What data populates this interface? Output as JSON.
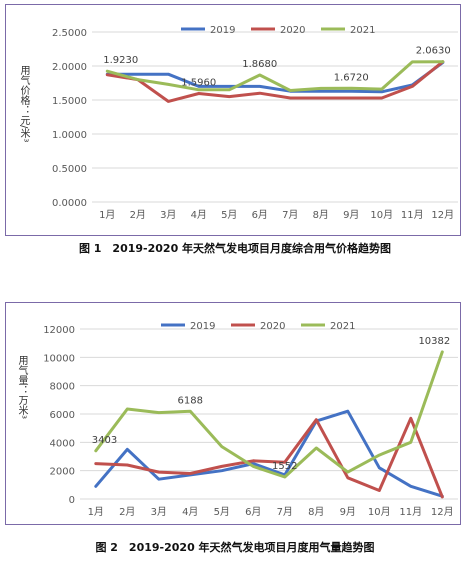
{
  "chart_data": [
    {
      "type": "line",
      "caption": "图 1　2019-2020 年天然气发电项目月度综合用气价格趋势图",
      "ylabel": "用气价格：元/米³",
      "categories": [
        "1月",
        "2月",
        "3月",
        "4月",
        "5月",
        "6月",
        "7月",
        "8月",
        "9月",
        "10月",
        "11月",
        "12月"
      ],
      "ylim": [
        0,
        2.5
      ],
      "yticks": [
        "0.0000",
        "0.5000",
        "1.0000",
        "1.5000",
        "2.0000",
        "2.5000"
      ],
      "legend_position": "top",
      "grid": true,
      "series": [
        {
          "name": "2019",
          "color": "#4472c4",
          "values": [
            1.88,
            1.88,
            1.88,
            1.7,
            1.7,
            1.7,
            1.63,
            1.63,
            1.63,
            1.62,
            1.72,
            2.05
          ]
        },
        {
          "name": "2020",
          "color": "#c0504d",
          "values": [
            1.87,
            1.8,
            1.48,
            1.596,
            1.55,
            1.6,
            1.53,
            1.53,
            1.53,
            1.53,
            1.7,
            2.063
          ]
        },
        {
          "name": "2021",
          "color": "#9bbb59",
          "values": [
            1.923,
            1.8,
            1.73,
            1.65,
            1.65,
            1.868,
            1.64,
            1.67,
            1.672,
            1.66,
            2.06,
            2.063
          ]
        }
      ],
      "annotations": [
        {
          "text": "1.9230",
          "series": 2,
          "index": 0
        },
        {
          "text": "1.5960",
          "series": 1,
          "index": 3
        },
        {
          "text": "1.8680",
          "series": 2,
          "index": 5
        },
        {
          "text": "1.6720",
          "series": 2,
          "index": 8
        },
        {
          "text": "2.0630",
          "series": 2,
          "index": 11
        }
      ]
    },
    {
      "type": "line",
      "caption": "图 2　2019-2020 年天然气发电项目月度用气量趋势图",
      "ylabel": "用气量：万米³",
      "categories": [
        "1月",
        "2月",
        "3月",
        "4月",
        "5月",
        "6月",
        "7月",
        "8月",
        "9月",
        "10月",
        "11月",
        "12月"
      ],
      "ylim": [
        0,
        12000
      ],
      "yticks": [
        "0",
        "2000",
        "4000",
        "6000",
        "8000",
        "10000",
        "12000"
      ],
      "legend_position": "top",
      "grid": true,
      "series": [
        {
          "name": "2019",
          "color": "#4472c4",
          "values": [
            900,
            3500,
            1400,
            1700,
            2000,
            2500,
            1700,
            5500,
            6200,
            2200,
            900,
            200
          ]
        },
        {
          "name": "2020",
          "color": "#c0504d",
          "values": [
            2500,
            2400,
            1900,
            1800,
            2300,
            2700,
            2600,
            5600,
            1500,
            600,
            5700,
            150
          ]
        },
        {
          "name": "2021",
          "color": "#9bbb59",
          "values": [
            3403,
            6350,
            6100,
            6188,
            3700,
            2300,
            1552,
            3600,
            1900,
            3100,
            4000,
            10382
          ]
        }
      ],
      "annotations": [
        {
          "text": "3403",
          "series": 2,
          "index": 0
        },
        {
          "text": "6188",
          "series": 2,
          "index": 3
        },
        {
          "text": "1552",
          "series": 2,
          "index": 6
        },
        {
          "text": "10382",
          "series": 2,
          "index": 11
        }
      ]
    }
  ]
}
